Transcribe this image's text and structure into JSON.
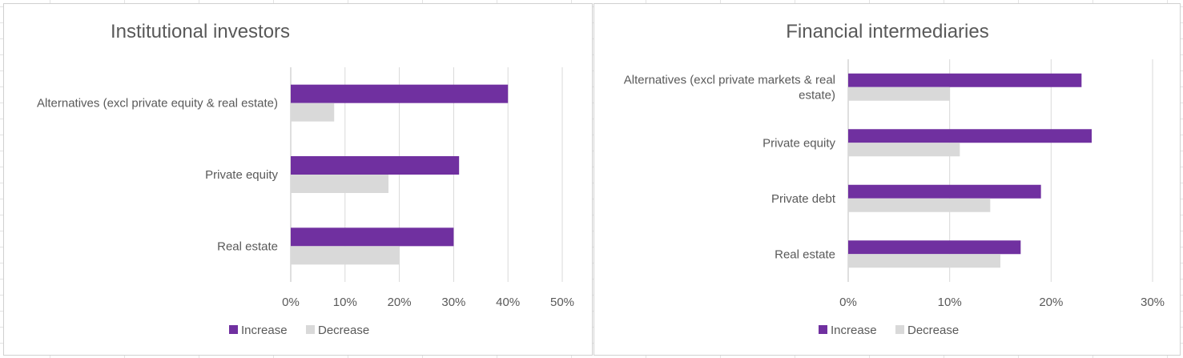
{
  "chart_data": [
    {
      "type": "bar",
      "orientation": "horizontal",
      "title": "Institutional investors",
      "categories": [
        "Alternatives (excl private equity & real estate)",
        "Private equity",
        "Real estate"
      ],
      "category_lines": [
        [
          "Alternatives (excl private equity & real estate)"
        ],
        [
          "Private equity"
        ],
        [
          "Real estate"
        ]
      ],
      "series": [
        {
          "name": "Increase",
          "color": "#7030A0",
          "values": [
            0.4,
            0.31,
            0.3
          ]
        },
        {
          "name": "Decrease",
          "color": "#D9D9D9",
          "values": [
            0.08,
            0.18,
            0.2
          ]
        }
      ],
      "xlim": [
        0,
        0.5
      ],
      "ticks": [
        {
          "value": 0,
          "label": "0%"
        },
        {
          "value": 0.1,
          "label": "10%"
        },
        {
          "value": 0.2,
          "label": "20%"
        },
        {
          "value": 0.3,
          "label": "30%"
        },
        {
          "value": 0.4,
          "label": "40%"
        },
        {
          "value": 0.5,
          "label": "50%"
        }
      ],
      "grid": true,
      "legend": "bottom"
    },
    {
      "type": "bar",
      "orientation": "horizontal",
      "title": "Financial intermediaries",
      "categories": [
        "Alternatives (excl private markets & real estate)",
        "Private equity",
        "Private debt",
        "Real estate"
      ],
      "category_lines": [
        [
          "Alternatives (excl private markets & real",
          "estate)"
        ],
        [
          "Private equity"
        ],
        [
          "Private debt"
        ],
        [
          "Real estate"
        ]
      ],
      "series": [
        {
          "name": "Increase",
          "color": "#7030A0",
          "values": [
            0.23,
            0.24,
            0.19,
            0.17
          ]
        },
        {
          "name": "Decrease",
          "color": "#D9D9D9",
          "values": [
            0.1,
            0.11,
            0.14,
            0.15
          ]
        }
      ],
      "xlim": [
        0,
        0.3
      ],
      "ticks": [
        {
          "value": 0,
          "label": "0%"
        },
        {
          "value": 0.1,
          "label": "10%"
        },
        {
          "value": 0.2,
          "label": "20%"
        },
        {
          "value": 0.3,
          "label": "30%"
        }
      ],
      "grid": true,
      "legend": "bottom"
    }
  ]
}
